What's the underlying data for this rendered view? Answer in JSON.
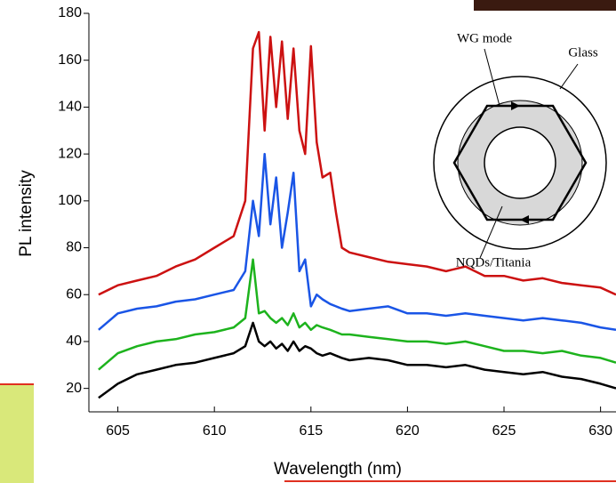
{
  "chart_data": {
    "type": "line",
    "x_label": "Wavelength (nm)",
    "y_label": "PL intensity",
    "x": [
      604,
      605,
      606,
      607,
      608,
      609,
      610,
      611,
      611.6,
      612,
      612.3,
      612.6,
      612.9,
      613.2,
      613.5,
      613.8,
      614.1,
      614.4,
      614.7,
      615,
      615.3,
      615.6,
      616,
      616.3,
      616.6,
      617,
      618,
      619,
      620,
      621,
      622,
      623,
      624,
      625,
      626,
      627,
      628,
      629,
      630,
      630.8
    ],
    "series": [
      {
        "color": "#cc1111",
        "values": [
          60,
          64,
          66,
          68,
          72,
          75,
          80,
          85,
          100,
          165,
          172,
          130,
          170,
          140,
          168,
          135,
          165,
          130,
          120,
          166,
          125,
          110,
          112,
          95,
          80,
          78,
          76,
          74,
          73,
          72,
          70,
          72,
          68,
          68,
          66,
          67,
          65,
          64,
          63,
          60
        ]
      },
      {
        "color": "#1a55e6",
        "values": [
          45,
          52,
          54,
          55,
          57,
          58,
          60,
          62,
          70,
          100,
          85,
          120,
          90,
          110,
          80,
          95,
          112,
          70,
          75,
          55,
          60,
          58,
          56,
          55,
          54,
          53,
          54,
          55,
          52,
          52,
          51,
          52,
          51,
          50,
          49,
          50,
          49,
          48,
          46,
          45
        ]
      },
      {
        "color": "#1db31d",
        "values": [
          28,
          35,
          38,
          40,
          41,
          43,
          44,
          46,
          50,
          75,
          52,
          53,
          50,
          48,
          50,
          47,
          52,
          46,
          48,
          45,
          47,
          46,
          45,
          44,
          43,
          43,
          42,
          41,
          40,
          40,
          39,
          40,
          38,
          36,
          36,
          35,
          36,
          34,
          33,
          31
        ]
      },
      {
        "color": "#000000",
        "values": [
          16,
          22,
          26,
          28,
          30,
          31,
          33,
          35,
          38,
          48,
          40,
          38,
          40,
          37,
          39,
          36,
          40,
          36,
          38,
          37,
          35,
          34,
          35,
          34,
          33,
          32,
          33,
          32,
          30,
          30,
          29,
          30,
          28,
          27,
          26,
          27,
          25,
          24,
          22,
          20
        ]
      }
    ],
    "xlim": [
      603.5,
      630.8
    ],
    "xticks": [
      605,
      610,
      615,
      620,
      625,
      630
    ],
    "ylim": [
      10,
      180
    ],
    "yticks": [
      20,
      40,
      60,
      80,
      100,
      120,
      140,
      160,
      180
    ],
    "annotations": [
      "WG mode",
      "Glass",
      "NQDs/Titania"
    ]
  }
}
